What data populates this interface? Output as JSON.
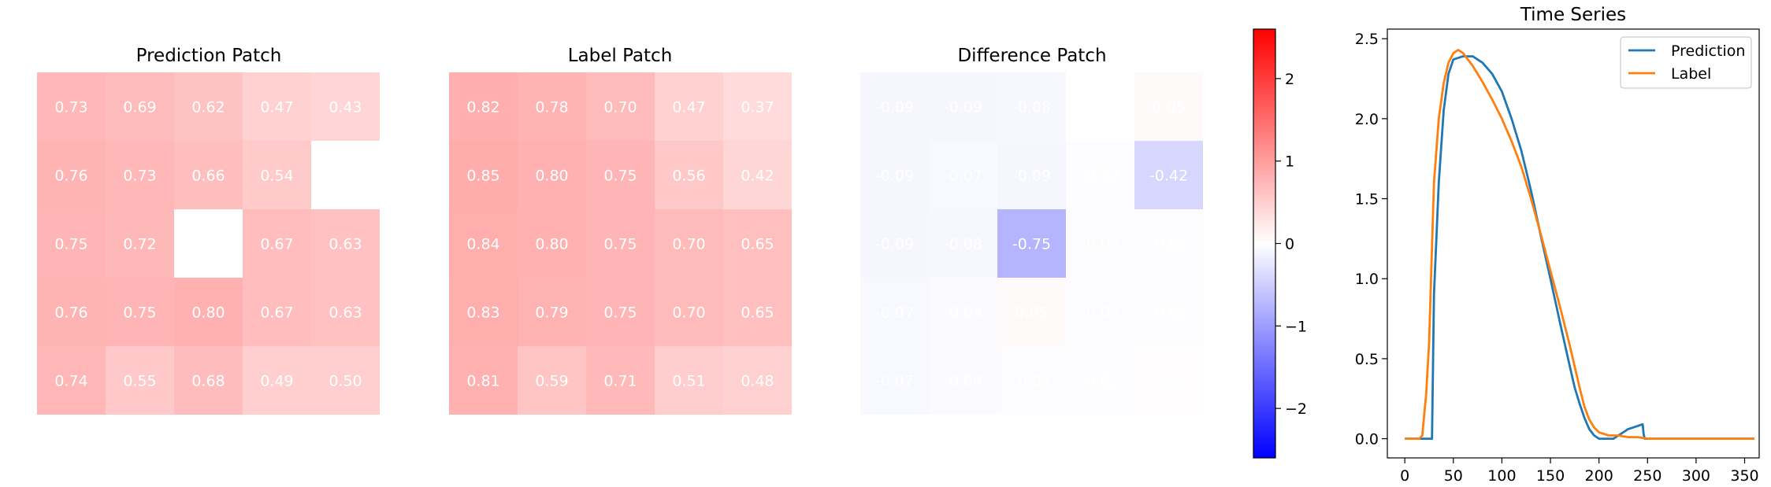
{
  "colors": {
    "cmap_low": "#0000ff",
    "cmap_mid": "#ffffff",
    "cmap_high": "#ff0000",
    "cell_text": "#ffffff",
    "prediction_line": "#1f77b4",
    "label_line": "#ff7f0e"
  },
  "chart_data": [
    {
      "type": "heatmap",
      "title": "Prediction Patch",
      "colormap": "bwr",
      "vmin": -2.6,
      "vmax": 2.6,
      "rows": [
        [
          0.73,
          0.69,
          0.62,
          0.47,
          0.43
        ],
        [
          0.76,
          0.73,
          0.66,
          0.54,
          null
        ],
        [
          0.75,
          0.72,
          null,
          0.67,
          0.63
        ],
        [
          0.76,
          0.75,
          0.8,
          0.67,
          0.63
        ],
        [
          0.74,
          0.55,
          0.68,
          0.49,
          0.5
        ]
      ]
    },
    {
      "type": "heatmap",
      "title": "Label Patch",
      "colormap": "bwr",
      "vmin": -2.6,
      "vmax": 2.6,
      "rows": [
        [
          0.82,
          0.78,
          0.7,
          0.47,
          0.37
        ],
        [
          0.85,
          0.8,
          0.75,
          0.56,
          0.42
        ],
        [
          0.84,
          0.8,
          0.75,
          0.7,
          0.65
        ],
        [
          0.83,
          0.79,
          0.75,
          0.7,
          0.65
        ],
        [
          0.81,
          0.59,
          0.71,
          0.51,
          0.48
        ]
      ]
    },
    {
      "type": "heatmap",
      "title": "Difference Patch",
      "colormap": "bwr",
      "vmin": -2.6,
      "vmax": 2.6,
      "rows": [
        [
          -0.09,
          -0.09,
          -0.08,
          0.0,
          0.05
        ],
        [
          -0.09,
          -0.07,
          -0.09,
          -0.02,
          -0.42
        ],
        [
          -0.09,
          -0.08,
          -0.75,
          -0.03,
          -0.02
        ],
        [
          -0.07,
          -0.04,
          0.05,
          -0.03,
          -0.02
        ],
        [
          -0.07,
          -0.04,
          -0.03,
          -0.02,
          0.02
        ]
      ],
      "colorbar": {
        "ticks": [
          2,
          1,
          0,
          -1,
          -2
        ],
        "tick_labels": [
          "2",
          "1",
          "0",
          "−1",
          "−2"
        ],
        "range": [
          -2.6,
          2.6
        ]
      }
    },
    {
      "type": "line",
      "title": "Time Series",
      "xlim": [
        -18,
        365
      ],
      "ylim": [
        -0.12,
        2.56
      ],
      "xticks": [
        0,
        50,
        100,
        150,
        200,
        250,
        300,
        350
      ],
      "xtick_labels": [
        "0",
        "50",
        "100",
        "150",
        "200",
        "250",
        "300",
        "350"
      ],
      "yticks": [
        0.0,
        0.5,
        1.0,
        1.5,
        2.0,
        2.5
      ],
      "ytick_labels": [
        "0.0",
        "0.5",
        "1.0",
        "1.5",
        "2.0",
        "2.5"
      ],
      "legend": "top-right",
      "series": [
        {
          "name": "Prediction",
          "color": "#1f77b4",
          "x": [
            0,
            20,
            22,
            25,
            28,
            30,
            35,
            40,
            45,
            50,
            55,
            60,
            70,
            80,
            90,
            100,
            110,
            120,
            130,
            140,
            150,
            160,
            170,
            175,
            180,
            185,
            190,
            195,
            200,
            205,
            210,
            215,
            220,
            225,
            230,
            235,
            240,
            245,
            246,
            247,
            250,
            260,
            280,
            300,
            320,
            340,
            360
          ],
          "y": [
            0.0,
            0.0,
            0.0,
            0.0,
            0.0,
            0.9,
            1.6,
            2.05,
            2.28,
            2.37,
            2.38,
            2.39,
            2.39,
            2.35,
            2.28,
            2.17,
            2.0,
            1.8,
            1.55,
            1.27,
            1.0,
            0.72,
            0.45,
            0.32,
            0.22,
            0.13,
            0.06,
            0.02,
            0.0,
            0.0,
            0.0,
            0.0,
            0.02,
            0.04,
            0.06,
            0.07,
            0.08,
            0.09,
            0.03,
            0.0,
            0.0,
            0.0,
            0.0,
            0.0,
            0.0,
            0.0,
            0.0
          ]
        },
        {
          "name": "Label",
          "color": "#ff7f0e",
          "x": [
            0,
            15,
            18,
            20,
            22,
            25,
            28,
            30,
            35,
            40,
            45,
            50,
            55,
            60,
            70,
            80,
            90,
            100,
            110,
            120,
            130,
            140,
            150,
            160,
            170,
            180,
            185,
            190,
            195,
            200,
            205,
            210,
            220,
            230,
            240,
            250,
            270,
            300,
            330,
            360
          ],
          "y": [
            0.0,
            0.0,
            0.02,
            0.15,
            0.28,
            0.6,
            1.2,
            1.6,
            2.0,
            2.22,
            2.35,
            2.41,
            2.43,
            2.41,
            2.33,
            2.23,
            2.12,
            2.0,
            1.86,
            1.7,
            1.5,
            1.28,
            1.05,
            0.82,
            0.58,
            0.32,
            0.2,
            0.12,
            0.07,
            0.04,
            0.03,
            0.02,
            0.02,
            0.01,
            0.01,
            0.0,
            0.0,
            0.0,
            0.0,
            0.0
          ]
        }
      ]
    }
  ]
}
